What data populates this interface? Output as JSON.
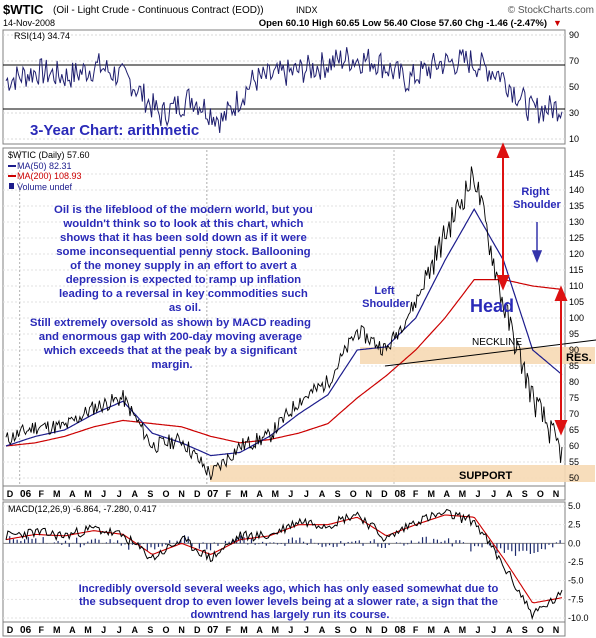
{
  "header": {
    "symbol": "$WTIC",
    "name": "(Oil - Light Crude - Continuous Contract (EOD))",
    "exchange": "INDX",
    "watermark": "© StockCharts.com",
    "date": "14-Nov-2008",
    "quote": "Open 60.10  High 60.65  Low 56.40  Close 57.60  Chg -1.46 (-2.47%)",
    "quote_arrow": "▼"
  },
  "rsi_panel": {
    "label": "RSI(14) 34.74",
    "title": "3-Year Chart: arithmetic",
    "ticks": [
      "90",
      "70",
      "50",
      "30",
      "10"
    ]
  },
  "price_panel": {
    "legend": {
      "main": "$WTIC (Daily) 57.60",
      "ma50": "MA(50) 82.31",
      "ma200": "MA(200) 108.93",
      "volume": "Volume undef"
    },
    "ticks": [
      "145",
      "140",
      "135",
      "130",
      "125",
      "120",
      "115",
      "110",
      "105",
      "100",
      "95",
      "90",
      "85",
      "80",
      "75",
      "70",
      "65",
      "60",
      "55",
      "50"
    ],
    "note1": [
      "Oil is the lifeblood of the modern world, but you",
      "wouldn't think so to look at this chart, which",
      "shows that it has been sold down as if it were",
      "some inconsequential penny stock. Ballooning",
      "of the money supply in an effort to avert a",
      "depression is expected to ramp up inflation",
      "leading to a reversal in key commodities such",
      "as oil."
    ],
    "note2": [
      "Still extremely oversold as shown by MACD reading",
      "and enormous gap with 200-day moving average",
      "which exceeds that at the peak by a significant",
      "margin."
    ],
    "labels": {
      "left_shoulder": [
        "Left",
        "Shoulder"
      ],
      "right_shoulder": [
        "Right",
        "Shoulder"
      ],
      "head": "Head",
      "neckline": "NECKLINE",
      "resistance": "RES.",
      "support": "SUPPORT"
    }
  },
  "x_axis": {
    "labels": [
      "D",
      "06",
      "F",
      "M",
      "A",
      "M",
      "J",
      "J",
      "A",
      "S",
      "O",
      "N",
      "D",
      "07",
      "F",
      "M",
      "A",
      "M",
      "J",
      "J",
      "A",
      "S",
      "O",
      "N",
      "D",
      "08",
      "F",
      "M",
      "A",
      "M",
      "J",
      "J",
      "A",
      "S",
      "O",
      "N"
    ]
  },
  "macd_panel": {
    "label": "MACD(12,26,9) -6.864, -7.280, 0.417",
    "ticks": [
      "5.0",
      "2.5",
      "0.0",
      "-2.5",
      "-5.0",
      "-7.5",
      "-10.0"
    ],
    "note": [
      "Incredibly oversold several weeks ago, which has only eased somewhat due to",
      "the subsequent drop to even lower levels being at a slower rate, a sign that the",
      "downtrend has largely run its course."
    ]
  },
  "colors": {
    "price": "#000000",
    "ma50": "#1c1c8c",
    "ma200": "#cc0000",
    "annotation": "#2a2ab8",
    "band": "#f6d9b4",
    "arrow": "#dd1111",
    "grid": "#c8c8c8"
  },
  "chart_data": [
    {
      "type": "line",
      "title": "RSI(14)",
      "ylim": [
        10,
        90
      ],
      "x": [
        "Dec-05",
        "Feb-06",
        "Apr-06",
        "Jun-06",
        "Aug-06",
        "Oct-06",
        "Dec-06",
        "Jan-07",
        "Mar-07",
        "May-07",
        "Jul-07",
        "Sep-07",
        "Nov-07",
        "Jan-08",
        "Mar-08",
        "May-08",
        "Jul-08",
        "Sep-08",
        "Nov-08"
      ],
      "series": [
        {
          "name": "RSI(14)",
          "values": [
            55,
            62,
            58,
            66,
            55,
            28,
            42,
            24,
            55,
            60,
            65,
            72,
            70,
            55,
            68,
            70,
            60,
            32,
            34.74
          ]
        }
      ]
    },
    {
      "type": "line",
      "title": "$WTIC (Daily)",
      "ylim": [
        50,
        150
      ],
      "x": [
        "Dec-05",
        "Feb-06",
        "Apr-06",
        "Jun-06",
        "Aug-06",
        "Oct-06",
        "Dec-06",
        "Jan-07",
        "Mar-07",
        "May-07",
        "Jul-07",
        "Sep-07",
        "Nov-07",
        "Jan-08",
        "Mar-08",
        "May-08",
        "Jul-08",
        "Sep-08",
        "Oct-08",
        "Nov-08"
      ],
      "series": [
        {
          "name": "$WTIC",
          "values": [
            62,
            66,
            66,
            72,
            75,
            60,
            62,
            51,
            60,
            63,
            74,
            80,
            96,
            90,
            105,
            126,
            145,
            104,
            75,
            57.6
          ]
        },
        {
          "name": "MA(50)",
          "values": [
            60,
            63,
            65,
            70,
            74,
            64,
            61,
            57,
            58,
            63,
            70,
            76,
            90,
            91,
            100,
            118,
            134,
            118,
            90,
            82.31
          ]
        },
        {
          "name": "MA(200)",
          "values": [
            60,
            61,
            63,
            66,
            68,
            67,
            66,
            63,
            61,
            62,
            64,
            67,
            75,
            82,
            90,
            100,
            112,
            112,
            110,
            108.93
          ]
        }
      ]
    },
    {
      "type": "line",
      "title": "MACD(12,26,9)",
      "ylim": [
        -10,
        5
      ],
      "x": [
        "Dec-05",
        "Feb-06",
        "Apr-06",
        "Jun-06",
        "Aug-06",
        "Oct-06",
        "Dec-06",
        "Jan-07",
        "Mar-07",
        "May-07",
        "Jul-07",
        "Sep-07",
        "Nov-07",
        "Jan-08",
        "Mar-08",
        "May-08",
        "Jul-08",
        "Sep-08",
        "Oct-08",
        "Nov-08"
      ],
      "series": [
        {
          "name": "MACD",
          "values": [
            1,
            1.5,
            1,
            2,
            1,
            -2,
            0.5,
            -2,
            1,
            1,
            3,
            2.5,
            4,
            0.5,
            3,
            4,
            3,
            -3,
            -9.5,
            -6.864
          ]
        },
        {
          "name": "Signal",
          "values": [
            0.5,
            1.2,
            1,
            1.7,
            1.2,
            -1.5,
            0,
            -1.5,
            0.5,
            1,
            2.5,
            2.5,
            3.5,
            1,
            2.5,
            3.8,
            3.5,
            -2,
            -8,
            -7.28
          ]
        }
      ]
    }
  ]
}
